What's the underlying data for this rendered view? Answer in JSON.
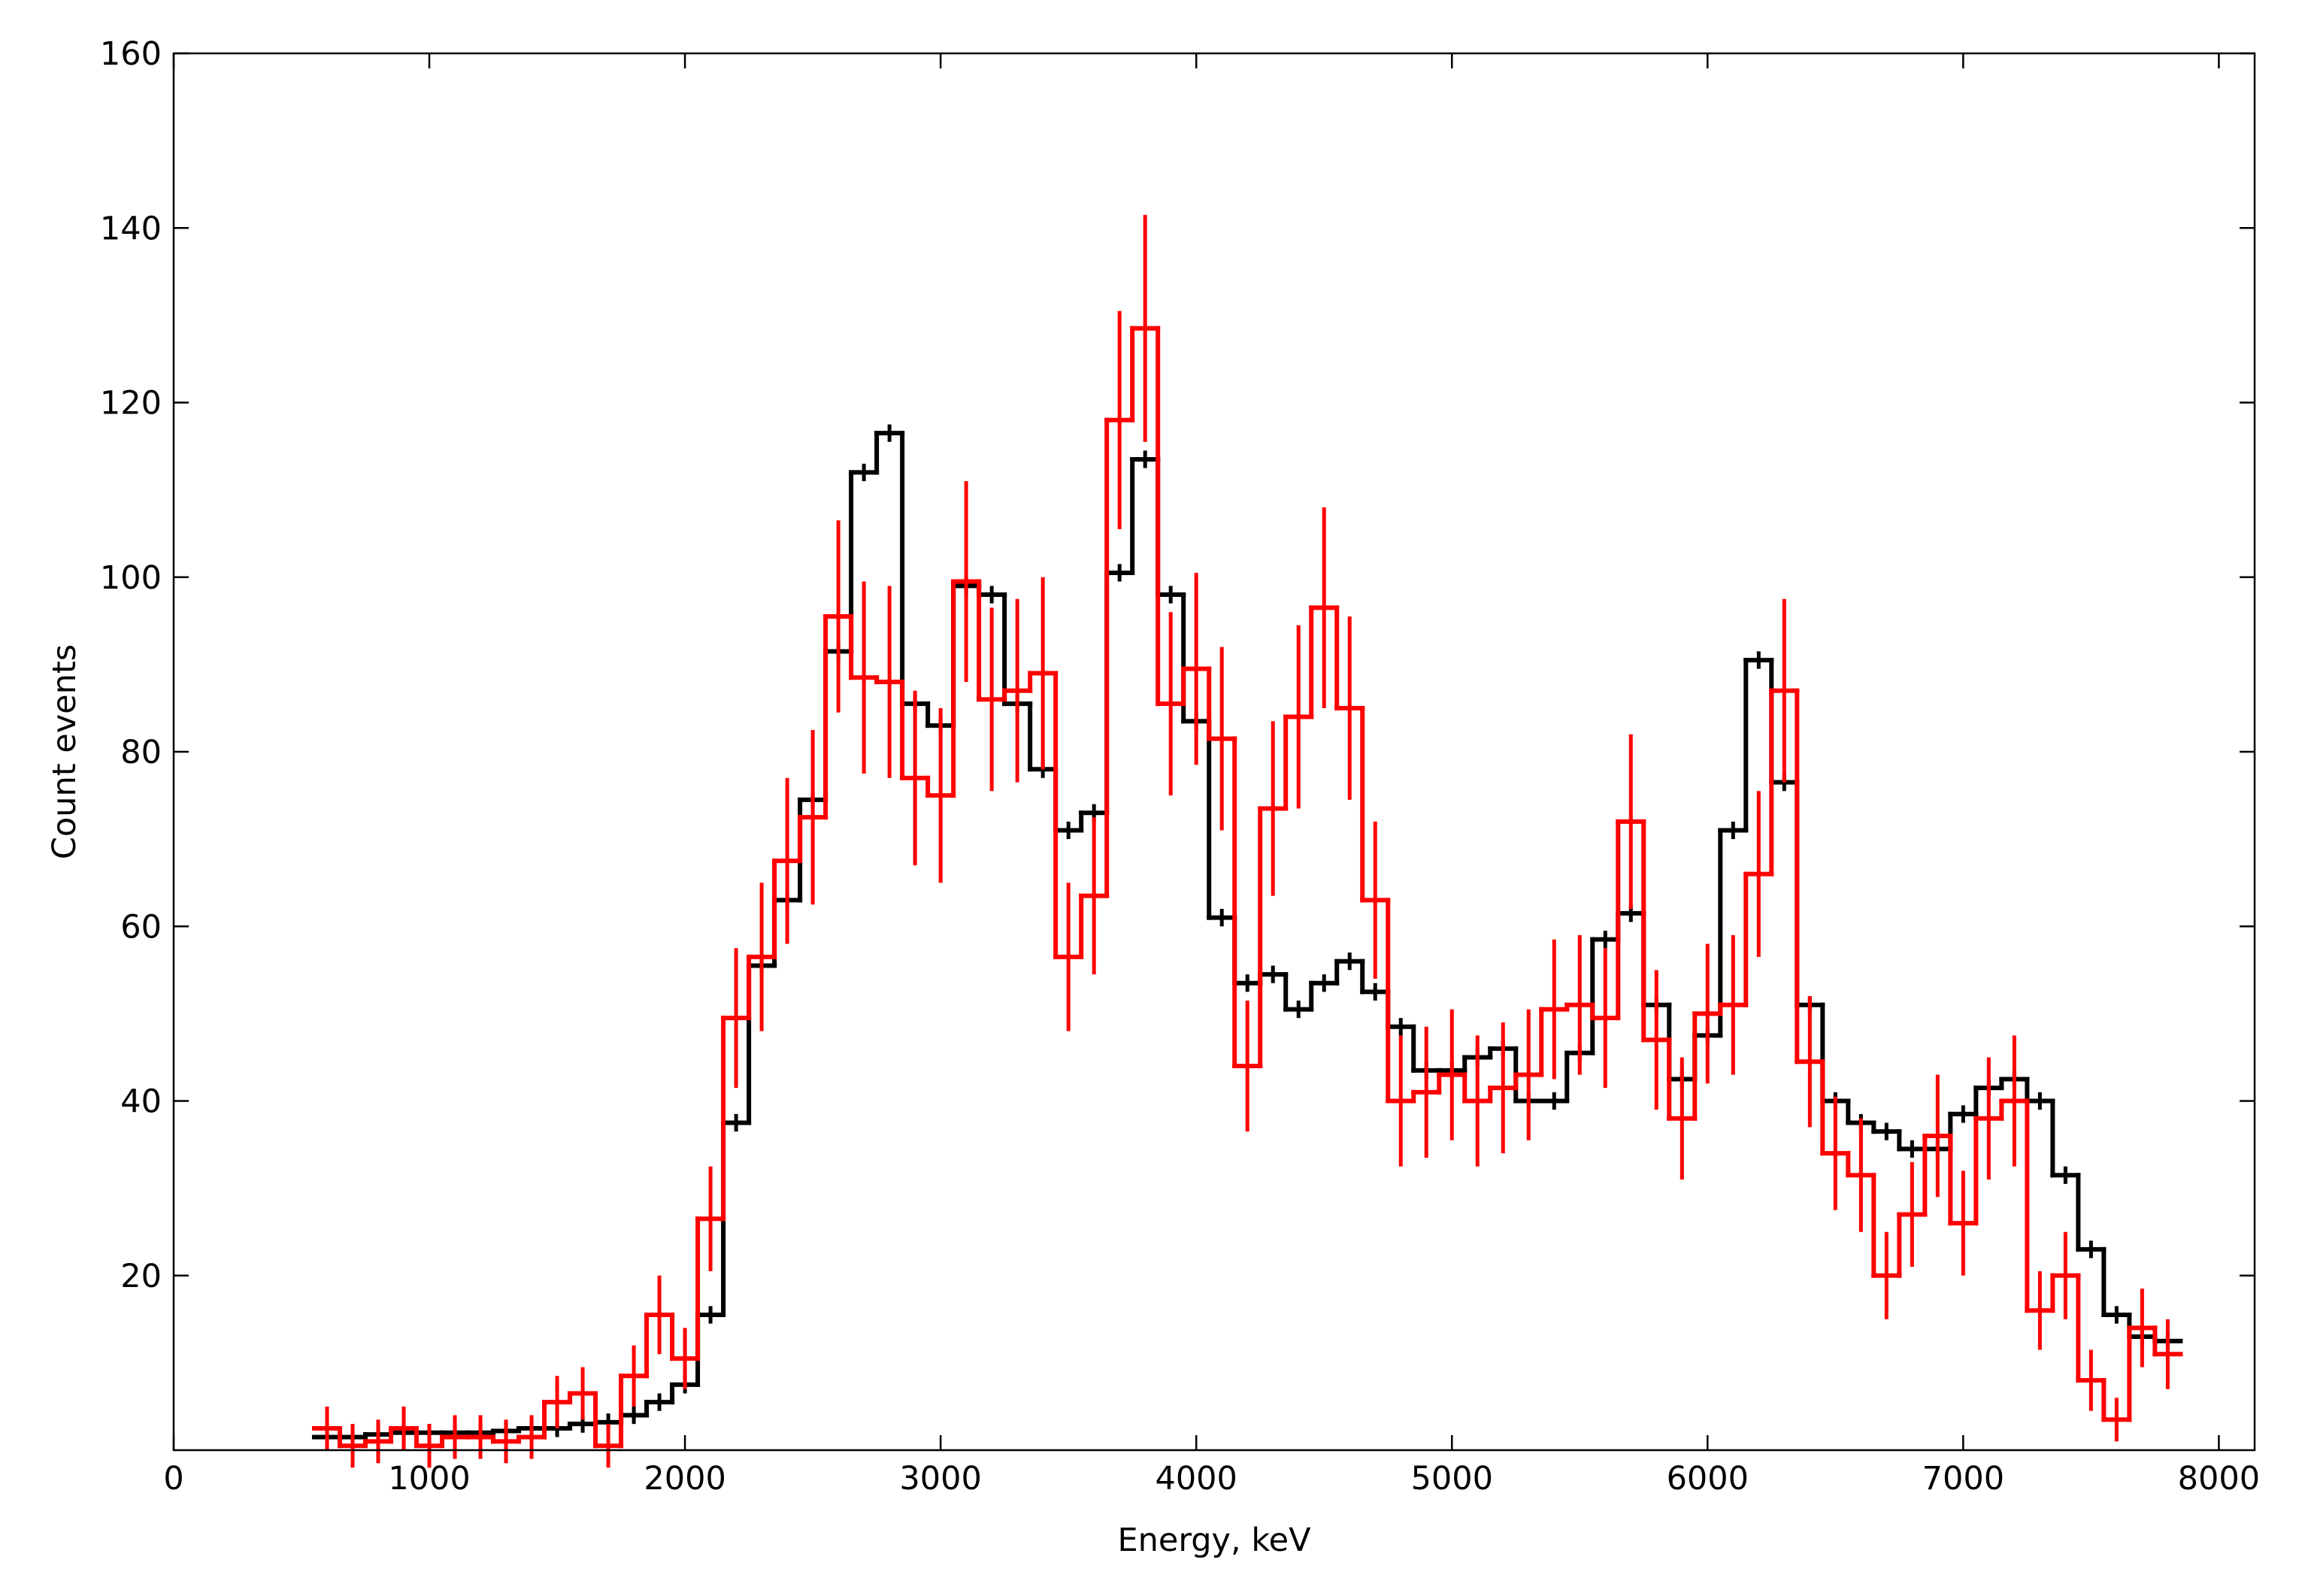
{
  "chart_data": {
    "type": "histogram",
    "xlabel": "Energy, keV",
    "ylabel": "Count events",
    "xlim": [
      0,
      8140
    ],
    "ylim": [
      0,
      160
    ],
    "xticks": [
      0,
      1000,
      2000,
      3000,
      4000,
      5000,
      6000,
      7000,
      8000
    ],
    "yticks": [
      20,
      40,
      60,
      80,
      100,
      120,
      140,
      160
    ],
    "bins": [
      550,
      650,
      750,
      850,
      950,
      1050,
      1150,
      1250,
      1350,
      1450,
      1550,
      1650,
      1750,
      1850,
      1950,
      2050,
      2150,
      2250,
      2350,
      2450,
      2550,
      2650,
      2750,
      2850,
      2950,
      3050,
      3150,
      3250,
      3350,
      3450,
      3550,
      3650,
      3750,
      3850,
      3950,
      4050,
      4150,
      4250,
      4350,
      4450,
      4550,
      4650,
      4750,
      4850,
      4950,
      5050,
      5150,
      5250,
      5350,
      5450,
      5550,
      5650,
      5750,
      5850,
      5950,
      6050,
      6150,
      6250,
      6350,
      6450,
      6550,
      6650,
      6750,
      6850,
      6950,
      7050,
      7150,
      7250,
      7350,
      7450,
      7550,
      7650,
      7750,
      7850
    ],
    "series": [
      {
        "color": "#000000",
        "values": [
          1.5,
          1.5,
          1.8,
          2,
          2,
          2,
          2,
          2.2,
          2.5,
          2.5,
          3,
          3.2,
          4,
          5.5,
          7.5,
          15.5,
          37.5,
          55.5,
          63,
          74.5,
          91.5,
          112,
          116.5,
          85.5,
          83,
          99,
          98,
          85.5,
          78,
          71,
          73,
          100.5,
          113.5,
          98,
          83.5,
          61,
          53.5,
          54.5,
          50.5,
          53.5,
          56,
          52.5,
          48.5,
          43.5,
          43.5,
          45,
          46,
          40,
          40,
          45.5,
          58.5,
          61.5,
          51,
          42.5,
          47.5,
          71,
          90.5,
          76.5,
          51,
          40,
          37.5,
          36.5,
          34.5,
          34.5,
          38.5,
          41.5,
          42.5,
          40,
          31.5,
          23,
          15.5,
          13,
          12.5
        ],
        "errors": [
          1,
          1,
          1,
          1,
          1,
          1,
          1,
          1,
          1,
          1,
          1,
          1,
          1,
          1,
          1,
          1,
          1,
          1,
          1,
          1,
          1,
          1,
          1,
          1,
          1,
          1,
          1,
          1,
          1,
          1,
          1,
          1,
          1,
          1,
          1,
          1,
          1,
          1,
          1,
          1,
          1,
          1,
          1,
          1,
          1,
          1,
          1,
          1,
          1,
          1,
          1,
          1,
          1,
          1,
          1,
          1,
          1,
          1,
          1,
          1,
          1,
          1,
          1,
          1,
          1,
          1,
          1,
          1,
          1,
          1,
          1,
          1,
          1
        ]
      },
      {
        "color": "#ff0000",
        "values": [
          2.5,
          0.5,
          1,
          2.5,
          0.5,
          1.5,
          1.5,
          1,
          1.5,
          5.5,
          6.5,
          0.5,
          8.5,
          15.5,
          10.5,
          26.5,
          49.5,
          56.5,
          67.5,
          72.5,
          95.5,
          88.5,
          88,
          77,
          75,
          99.5,
          86,
          87,
          89,
          56.5,
          63.5,
          118,
          128.5,
          85.5,
          89.5,
          81.5,
          44,
          73.5,
          84,
          96.5,
          85,
          63,
          40,
          41,
          43,
          40,
          41.5,
          43,
          50.5,
          51,
          49.5,
          72,
          47,
          38,
          50,
          51,
          66,
          87,
          44.5,
          34,
          31.5,
          20,
          27,
          36,
          26,
          38,
          40,
          16,
          20,
          8,
          3.5,
          14,
          11
        ],
        "errors": [
          2.5,
          2.5,
          2.5,
          2.5,
          2.5,
          2.5,
          2.5,
          2.5,
          2.5,
          3,
          3,
          2.5,
          3.5,
          4.5,
          3.5,
          6,
          8,
          8.5,
          9.5,
          10,
          11,
          11,
          11,
          10,
          10,
          11.5,
          10.5,
          10.5,
          11,
          8.5,
          9,
          12.5,
          13,
          10.5,
          11,
          10.5,
          7.5,
          10,
          10.5,
          11.5,
          10.5,
          9,
          7.5,
          7.5,
          7.5,
          7.5,
          7.5,
          7.5,
          8,
          8,
          8,
          10,
          8,
          7,
          8,
          8,
          9.5,
          10.5,
          7.5,
          6.5,
          6.5,
          5,
          6,
          7,
          6,
          7,
          7.5,
          4.5,
          5,
          3.5,
          2.5,
          4.5,
          4
        ]
      }
    ]
  }
}
